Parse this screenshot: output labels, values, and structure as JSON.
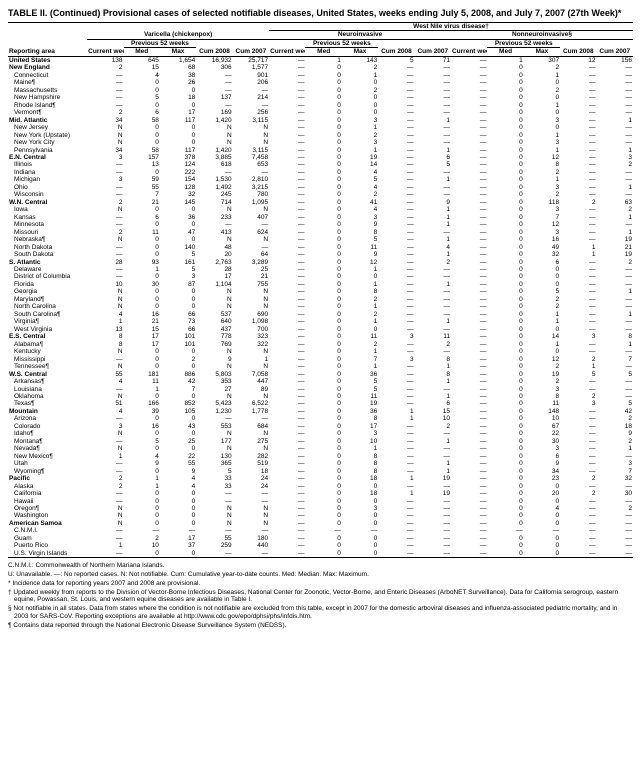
{
  "title": "TABLE II. (Continued) Provisional cases of selected notifiable diseases, United States, weeks ending July 5, 2008, and July 7, 2007 (27th Week)*",
  "diseaseGroups": [
    "Varicella (chickenpox)",
    "West Nile virus disease†"
  ],
  "subGroups": [
    "Neuroinvasive",
    "Nonneuroinvasive§"
  ],
  "subHeaders": {
    "current": "Current week",
    "prev": "Previous 52 weeks",
    "med": "Med",
    "max": "Max",
    "cum08": "Cum 2008",
    "cum07": "Cum 2007"
  },
  "areaHeader": "Reporting area",
  "colors": {
    "bg": "#ffffff",
    "text": "#000000",
    "rule": "#000000"
  },
  "fontsize": {
    "title": 9,
    "body": 6.5
  },
  "rows": [
    {
      "a": "United States",
      "g": 1,
      "d": [
        "138",
        "645",
        "1,654",
        "16,932",
        "25,717",
        "—",
        "1",
        "143",
        "5",
        "71",
        "—",
        "1",
        "307",
        "12",
        "156"
      ]
    },
    {
      "a": "New England",
      "g": 1,
      "d": [
        "2",
        "15",
        "68",
        "306",
        "1,577",
        "—",
        "0",
        "2",
        "—",
        "—",
        "—",
        "0",
        "2",
        "—",
        "—"
      ]
    },
    {
      "a": "Connecticut",
      "g": 0,
      "d": [
        "—",
        "4",
        "38",
        "—",
        "901",
        "—",
        "0",
        "1",
        "—",
        "—",
        "—",
        "0",
        "1",
        "—",
        "—"
      ]
    },
    {
      "a": "Maine¶",
      "g": 0,
      "d": [
        "—",
        "0",
        "26",
        "—",
        "206",
        "—",
        "0",
        "0",
        "—",
        "—",
        "—",
        "0",
        "0",
        "—",
        "—"
      ]
    },
    {
      "a": "Massachusetts",
      "g": 0,
      "d": [
        "—",
        "0",
        "0",
        "—",
        "—",
        "—",
        "0",
        "2",
        "—",
        "—",
        "—",
        "0",
        "2",
        "—",
        "—"
      ]
    },
    {
      "a": "New Hampshire",
      "g": 0,
      "d": [
        "—",
        "5",
        "18",
        "137",
        "214",
        "—",
        "0",
        "0",
        "—",
        "—",
        "—",
        "0",
        "0",
        "—",
        "—"
      ]
    },
    {
      "a": "Rhode Island¶",
      "g": 0,
      "d": [
        "—",
        "0",
        "0",
        "—",
        "—",
        "—",
        "0",
        "0",
        "—",
        "—",
        "—",
        "0",
        "1",
        "—",
        "—"
      ]
    },
    {
      "a": "Vermont¶",
      "g": 0,
      "d": [
        "2",
        "6",
        "17",
        "169",
        "256",
        "—",
        "0",
        "0",
        "—",
        "—",
        "—",
        "0",
        "0",
        "—",
        "—"
      ]
    },
    {
      "a": "Mid. Atlantic",
      "g": 1,
      "d": [
        "34",
        "58",
        "117",
        "1,420",
        "3,115",
        "—",
        "0",
        "3",
        "—",
        "1",
        "—",
        "0",
        "3",
        "—",
        "1"
      ]
    },
    {
      "a": "New Jersey",
      "g": 0,
      "d": [
        "N",
        "0",
        "0",
        "N",
        "N",
        "—",
        "0",
        "1",
        "—",
        "—",
        "—",
        "0",
        "0",
        "—",
        "—"
      ]
    },
    {
      "a": "New York (Upstate)",
      "g": 0,
      "d": [
        "N",
        "0",
        "0",
        "N",
        "N",
        "—",
        "0",
        "2",
        "—",
        "—",
        "—",
        "0",
        "1",
        "—",
        "—"
      ]
    },
    {
      "a": "New York City",
      "g": 0,
      "d": [
        "N",
        "0",
        "0",
        "N",
        "N",
        "—",
        "0",
        "3",
        "—",
        "—",
        "—",
        "0",
        "3",
        "—",
        "—"
      ]
    },
    {
      "a": "Pennsylvania",
      "g": 0,
      "d": [
        "34",
        "58",
        "117",
        "1,420",
        "3,115",
        "—",
        "0",
        "1",
        "—",
        "1",
        "—",
        "0",
        "1",
        "—",
        "1"
      ]
    },
    {
      "a": "E.N. Central",
      "g": 1,
      "d": [
        "3",
        "157",
        "378",
        "3,885",
        "7,458",
        "—",
        "0",
        "19",
        "—",
        "6",
        "—",
        "0",
        "12",
        "—",
        "3"
      ]
    },
    {
      "a": "Illinois",
      "g": 0,
      "d": [
        "—",
        "13",
        "124",
        "618",
        "653",
        "—",
        "0",
        "14",
        "—",
        "5",
        "—",
        "0",
        "8",
        "—",
        "2"
      ]
    },
    {
      "a": "Indiana",
      "g": 0,
      "d": [
        "—",
        "0",
        "222",
        "—",
        "—",
        "—",
        "0",
        "4",
        "—",
        "—",
        "—",
        "0",
        "2",
        "—",
        "—"
      ]
    },
    {
      "a": "Michigan",
      "g": 0,
      "d": [
        "3",
        "59",
        "154",
        "1,530",
        "2,810",
        "—",
        "0",
        "5",
        "—",
        "1",
        "—",
        "0",
        "1",
        "—",
        "—"
      ]
    },
    {
      "a": "Ohio",
      "g": 0,
      "d": [
        "—",
        "55",
        "128",
        "1,492",
        "3,215",
        "—",
        "0",
        "4",
        "—",
        "—",
        "—",
        "0",
        "3",
        "—",
        "1"
      ]
    },
    {
      "a": "Wisconsin",
      "g": 0,
      "d": [
        "—",
        "7",
        "32",
        "245",
        "780",
        "—",
        "0",
        "2",
        "—",
        "—",
        "—",
        "0",
        "2",
        "—",
        "—"
      ]
    },
    {
      "a": "W.N. Central",
      "g": 1,
      "d": [
        "2",
        "21",
        "145",
        "714",
        "1,095",
        "—",
        "0",
        "41",
        "—",
        "9",
        "—",
        "0",
        "118",
        "2",
        "63"
      ]
    },
    {
      "a": "Iowa",
      "g": 0,
      "d": [
        "N",
        "0",
        "0",
        "N",
        "N",
        "—",
        "0",
        "4",
        "—",
        "1",
        "—",
        "0",
        "3",
        "—",
        "2"
      ]
    },
    {
      "a": "Kansas",
      "g": 0,
      "d": [
        "—",
        "6",
        "36",
        "233",
        "407",
        "—",
        "0",
        "3",
        "—",
        "1",
        "—",
        "0",
        "7",
        "—",
        "1"
      ]
    },
    {
      "a": "Minnesota",
      "g": 0,
      "d": [
        "—",
        "0",
        "0",
        "—",
        "—",
        "—",
        "0",
        "9",
        "—",
        "1",
        "—",
        "0",
        "12",
        "—",
        "—"
      ]
    },
    {
      "a": "Missouri",
      "g": 0,
      "d": [
        "2",
        "11",
        "47",
        "413",
        "624",
        "—",
        "0",
        "8",
        "—",
        "—",
        "—",
        "0",
        "3",
        "—",
        "1"
      ]
    },
    {
      "a": "Nebraska¶",
      "g": 0,
      "d": [
        "N",
        "0",
        "0",
        "N",
        "N",
        "—",
        "0",
        "5",
        "—",
        "1",
        "—",
        "0",
        "16",
        "—",
        "19"
      ]
    },
    {
      "a": "North Dakota",
      "g": 0,
      "d": [
        "—",
        "0",
        "140",
        "48",
        "—",
        "—",
        "0",
        "11",
        "—",
        "4",
        "—",
        "0",
        "49",
        "1",
        "21"
      ]
    },
    {
      "a": "South Dakota",
      "g": 0,
      "d": [
        "—",
        "0",
        "5",
        "20",
        "64",
        "—",
        "0",
        "9",
        "—",
        "1",
        "—",
        "0",
        "32",
        "1",
        "19"
      ]
    },
    {
      "a": "S. Atlantic",
      "g": 1,
      "d": [
        "28",
        "93",
        "161",
        "2,763",
        "3,289",
        "—",
        "0",
        "12",
        "—",
        "2",
        "—",
        "0",
        "6",
        "—",
        "2"
      ]
    },
    {
      "a": "Delaware",
      "g": 0,
      "d": [
        "—",
        "1",
        "5",
        "28",
        "25",
        "—",
        "0",
        "1",
        "—",
        "—",
        "—",
        "0",
        "0",
        "—",
        "—"
      ]
    },
    {
      "a": "District of Columbia",
      "g": 0,
      "d": [
        "—",
        "0",
        "3",
        "17",
        "21",
        "—",
        "0",
        "0",
        "—",
        "—",
        "—",
        "0",
        "0",
        "—",
        "—"
      ]
    },
    {
      "a": "Florida",
      "g": 0,
      "d": [
        "10",
        "30",
        "87",
        "1,104",
        "755",
        "—",
        "0",
        "1",
        "—",
        "1",
        "—",
        "0",
        "0",
        "—",
        "—"
      ]
    },
    {
      "a": "Georgia",
      "g": 0,
      "d": [
        "N",
        "0",
        "0",
        "N",
        "N",
        "—",
        "0",
        "8",
        "—",
        "—",
        "—",
        "0",
        "5",
        "—",
        "1"
      ]
    },
    {
      "a": "Maryland¶",
      "g": 0,
      "d": [
        "N",
        "0",
        "0",
        "N",
        "N",
        "—",
        "0",
        "2",
        "—",
        "—",
        "—",
        "0",
        "2",
        "—",
        "—"
      ]
    },
    {
      "a": "North Carolina",
      "g": 0,
      "d": [
        "N",
        "0",
        "0",
        "N",
        "N",
        "—",
        "0",
        "1",
        "—",
        "—",
        "—",
        "0",
        "2",
        "—",
        "—"
      ]
    },
    {
      "a": "South Carolina¶",
      "g": 0,
      "d": [
        "4",
        "16",
        "66",
        "537",
        "690",
        "—",
        "0",
        "2",
        "—",
        "—",
        "—",
        "0",
        "1",
        "—",
        "1"
      ]
    },
    {
      "a": "Virginia¶",
      "g": 0,
      "d": [
        "1",
        "21",
        "73",
        "640",
        "1,098",
        "—",
        "0",
        "1",
        "—",
        "1",
        "—",
        "0",
        "1",
        "—",
        "—"
      ]
    },
    {
      "a": "West Virginia",
      "g": 0,
      "d": [
        "13",
        "15",
        "66",
        "437",
        "700",
        "—",
        "0",
        "0",
        "—",
        "—",
        "—",
        "0",
        "0",
        "—",
        "—"
      ]
    },
    {
      "a": "E.S. Central",
      "g": 1,
      "d": [
        "8",
        "17",
        "101",
        "778",
        "323",
        "—",
        "0",
        "11",
        "3",
        "11",
        "—",
        "0",
        "14",
        "3",
        "8"
      ]
    },
    {
      "a": "Alabama¶",
      "g": 0,
      "d": [
        "8",
        "17",
        "101",
        "769",
        "322",
        "—",
        "0",
        "2",
        "—",
        "2",
        "—",
        "0",
        "1",
        "—",
        "1"
      ]
    },
    {
      "a": "Kentucky",
      "g": 0,
      "d": [
        "N",
        "0",
        "0",
        "N",
        "N",
        "—",
        "0",
        "1",
        "—",
        "—",
        "—",
        "0",
        "0",
        "—",
        "—"
      ]
    },
    {
      "a": "Mississippi",
      "g": 0,
      "d": [
        "—",
        "0",
        "2",
        "9",
        "1",
        "—",
        "0",
        "7",
        "3",
        "8",
        "—",
        "0",
        "12",
        "2",
        "7"
      ]
    },
    {
      "a": "Tennessee¶",
      "g": 0,
      "d": [
        "N",
        "0",
        "0",
        "N",
        "N",
        "—",
        "0",
        "1",
        "—",
        "1",
        "—",
        "0",
        "2",
        "1",
        "—"
      ]
    },
    {
      "a": "W.S. Central",
      "g": 1,
      "d": [
        "55",
        "181",
        "886",
        "5,803",
        "7,058",
        "—",
        "0",
        "36",
        "—",
        "8",
        "—",
        "0",
        "19",
        "5",
        "5"
      ]
    },
    {
      "a": "Arkansas¶",
      "g": 0,
      "d": [
        "4",
        "11",
        "42",
        "353",
        "447",
        "—",
        "0",
        "5",
        "—",
        "1",
        "—",
        "0",
        "2",
        "—",
        "—"
      ]
    },
    {
      "a": "Louisiana",
      "g": 0,
      "d": [
        "—",
        "1",
        "7",
        "27",
        "89",
        "—",
        "0",
        "5",
        "—",
        "—",
        "—",
        "0",
        "3",
        "—",
        "—"
      ]
    },
    {
      "a": "Oklahoma",
      "g": 0,
      "d": [
        "N",
        "0",
        "0",
        "N",
        "N",
        "—",
        "0",
        "11",
        "—",
        "1",
        "—",
        "0",
        "8",
        "2",
        "—"
      ]
    },
    {
      "a": "Texas¶",
      "g": 0,
      "d": [
        "51",
        "166",
        "852",
        "5,423",
        "6,522",
        "—",
        "0",
        "19",
        "—",
        "6",
        "—",
        "0",
        "11",
        "3",
        "5"
      ]
    },
    {
      "a": "Mountain",
      "g": 1,
      "d": [
        "4",
        "39",
        "105",
        "1,230",
        "1,778",
        "—",
        "0",
        "36",
        "1",
        "15",
        "—",
        "0",
        "148",
        "—",
        "42"
      ]
    },
    {
      "a": "Arizona",
      "g": 0,
      "d": [
        "—",
        "0",
        "0",
        "—",
        "—",
        "—",
        "0",
        "8",
        "1",
        "10",
        "—",
        "0",
        "10",
        "—",
        "2"
      ]
    },
    {
      "a": "Colorado",
      "g": 0,
      "d": [
        "3",
        "16",
        "43",
        "553",
        "684",
        "—",
        "0",
        "17",
        "—",
        "2",
        "—",
        "0",
        "67",
        "—",
        "18"
      ]
    },
    {
      "a": "Idaho¶",
      "g": 0,
      "d": [
        "N",
        "0",
        "0",
        "N",
        "N",
        "—",
        "0",
        "3",
        "—",
        "—",
        "—",
        "0",
        "22",
        "—",
        "9"
      ]
    },
    {
      "a": "Montana¶",
      "g": 0,
      "d": [
        "—",
        "5",
        "25",
        "177",
        "275",
        "—",
        "0",
        "10",
        "—",
        "1",
        "—",
        "0",
        "30",
        "—",
        "2"
      ]
    },
    {
      "a": "Nevada¶",
      "g": 0,
      "d": [
        "N",
        "0",
        "0",
        "N",
        "N",
        "—",
        "0",
        "1",
        "—",
        "—",
        "—",
        "0",
        "3",
        "—",
        "1"
      ]
    },
    {
      "a": "New Mexico¶",
      "g": 0,
      "d": [
        "1",
        "4",
        "22",
        "130",
        "282",
        "—",
        "0",
        "8",
        "—",
        "—",
        "—",
        "0",
        "6",
        "—",
        "—"
      ]
    },
    {
      "a": "Utah",
      "g": 0,
      "d": [
        "—",
        "9",
        "55",
        "365",
        "519",
        "—",
        "0",
        "8",
        "—",
        "1",
        "—",
        "0",
        "9",
        "—",
        "3"
      ]
    },
    {
      "a": "Wyoming¶",
      "g": 0,
      "d": [
        "—",
        "0",
        "9",
        "5",
        "18",
        "—",
        "0",
        "8",
        "—",
        "1",
        "—",
        "0",
        "34",
        "—",
        "7"
      ]
    },
    {
      "a": "Pacific",
      "g": 1,
      "d": [
        "2",
        "1",
        "4",
        "33",
        "24",
        "—",
        "0",
        "18",
        "1",
        "19",
        "—",
        "0",
        "23",
        "2",
        "32"
      ]
    },
    {
      "a": "Alaska",
      "g": 0,
      "d": [
        "2",
        "1",
        "4",
        "33",
        "24",
        "—",
        "0",
        "0",
        "—",
        "—",
        "—",
        "0",
        "0",
        "—",
        "—"
      ]
    },
    {
      "a": "California",
      "g": 0,
      "d": [
        "—",
        "0",
        "0",
        "—",
        "—",
        "—",
        "0",
        "18",
        "1",
        "19",
        "—",
        "0",
        "20",
        "2",
        "30"
      ]
    },
    {
      "a": "Hawaii",
      "g": 0,
      "d": [
        "—",
        "0",
        "0",
        "—",
        "—",
        "—",
        "0",
        "0",
        "—",
        "—",
        "—",
        "0",
        "0",
        "—",
        "—"
      ]
    },
    {
      "a": "Oregon¶",
      "g": 0,
      "d": [
        "N",
        "0",
        "0",
        "N",
        "N",
        "—",
        "0",
        "3",
        "—",
        "—",
        "—",
        "0",
        "4",
        "—",
        "2"
      ]
    },
    {
      "a": "Washington",
      "g": 0,
      "d": [
        "N",
        "0",
        "0",
        "N",
        "N",
        "—",
        "0",
        "0",
        "—",
        "—",
        "—",
        "0",
        "0",
        "—",
        "—"
      ]
    },
    {
      "a": "American Samoa",
      "g": 1,
      "d": [
        "N",
        "0",
        "0",
        "N",
        "N",
        "—",
        "0",
        "0",
        "—",
        "—",
        "—",
        "0",
        "0",
        "—",
        "—"
      ]
    },
    {
      "a": "C.N.M.I.",
      "g": 0,
      "d": [
        "—",
        "—",
        "—",
        "—",
        "—",
        "—",
        "—",
        "—",
        "—",
        "—",
        "—",
        "—",
        "—",
        "—",
        "—"
      ]
    },
    {
      "a": "Guam",
      "g": 0,
      "d": [
        "—",
        "2",
        "17",
        "55",
        "180",
        "—",
        "0",
        "0",
        "—",
        "—",
        "—",
        "0",
        "0",
        "—",
        "—"
      ]
    },
    {
      "a": "Puerto Rico",
      "g": 0,
      "d": [
        "1",
        "10",
        "37",
        "259",
        "440",
        "—",
        "0",
        "0",
        "—",
        "—",
        "—",
        "0",
        "0",
        "—",
        "—"
      ]
    },
    {
      "a": "U.S. Virgin Islands",
      "g": 0,
      "d": [
        "—",
        "0",
        "0",
        "—",
        "—",
        "—",
        "0",
        "0",
        "—",
        "—",
        "—",
        "0",
        "0",
        "—",
        "—"
      ]
    }
  ],
  "footnotes": [
    "C.N.M.I.: Commonwealth of Northern Mariana Islands.",
    "U: Unavailable.   —: No reported cases.   N: Not notifiable.   Cum: Cumulative year-to-date counts.   Med: Median.   Max: Maximum.",
    "* Incidence data for reporting years 2007 and 2008 are provisional.",
    "† Updated weekly from reports to the Division of Vector-Borne Infectious Diseases, National Center for Zoonotic, Vector-Borne, and Enteric Diseases (ArboNET Surveillance). Data for California serogroup, eastern equine, Powassan, St. Louis, and western equine diseases are available in Table I.",
    "§ Not notifiable in all states. Data from states where the condition is not notifiable are excluded from this table, except in 2007 for the domestic arboviral diseases and influenza-associated pediatric mortality, and in 2003 for SARS-CoV. Reporting exceptions are available at http://www.cdc.gov/epo/dphsi/phs/infdis.htm.",
    "¶ Contains data reported through the National Electronic Disease Surveillance System (NEDSS)."
  ]
}
